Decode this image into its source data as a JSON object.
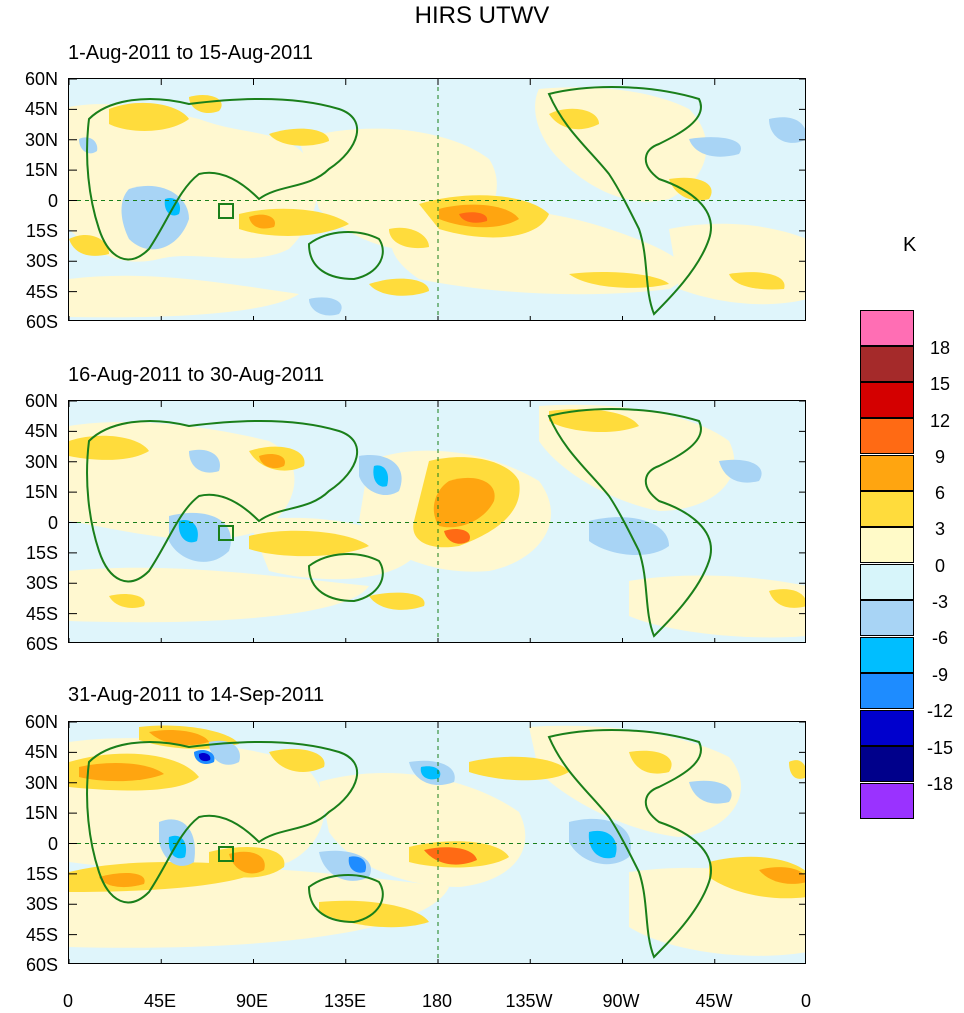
{
  "title": "HIRS UTWV",
  "panels": [
    {
      "title": "1-Aug-2011 to 15-Aug-2011"
    },
    {
      "title": "16-Aug-2011 to 30-Aug-2011"
    },
    {
      "title": "31-Aug-2011 to 14-Sep-2011"
    }
  ],
  "y_ticks": [
    "60N",
    "45N",
    "30N",
    "15N",
    "0",
    "15S",
    "30S",
    "45S",
    "60S"
  ],
  "x_ticks": [
    "0",
    "45E",
    "90E",
    "135E",
    "180",
    "135W",
    "90W",
    "45W",
    "0"
  ],
  "colorbar": {
    "unit": "K",
    "labels": [
      "18",
      "15",
      "12",
      "9",
      "6",
      "3",
      "0",
      "-3",
      "-6",
      "-9",
      "-12",
      "-15",
      "-18"
    ],
    "colors": [
      "#ff6eb4",
      "#a52a2a",
      "#d40000",
      "#ff6a14",
      "#ffa510",
      "#ffdc3c",
      "#fffac8",
      "#d7f5fa",
      "#a8d4f5",
      "#00beff",
      "#1e8cff",
      "#0000cd",
      "#00008b",
      "#9a32ff"
    ]
  },
  "colors": {
    "land_outline": "#1a7f1a",
    "ocean_neutral": "#dff5fb",
    "land_neutral": "#fff8d0"
  }
}
